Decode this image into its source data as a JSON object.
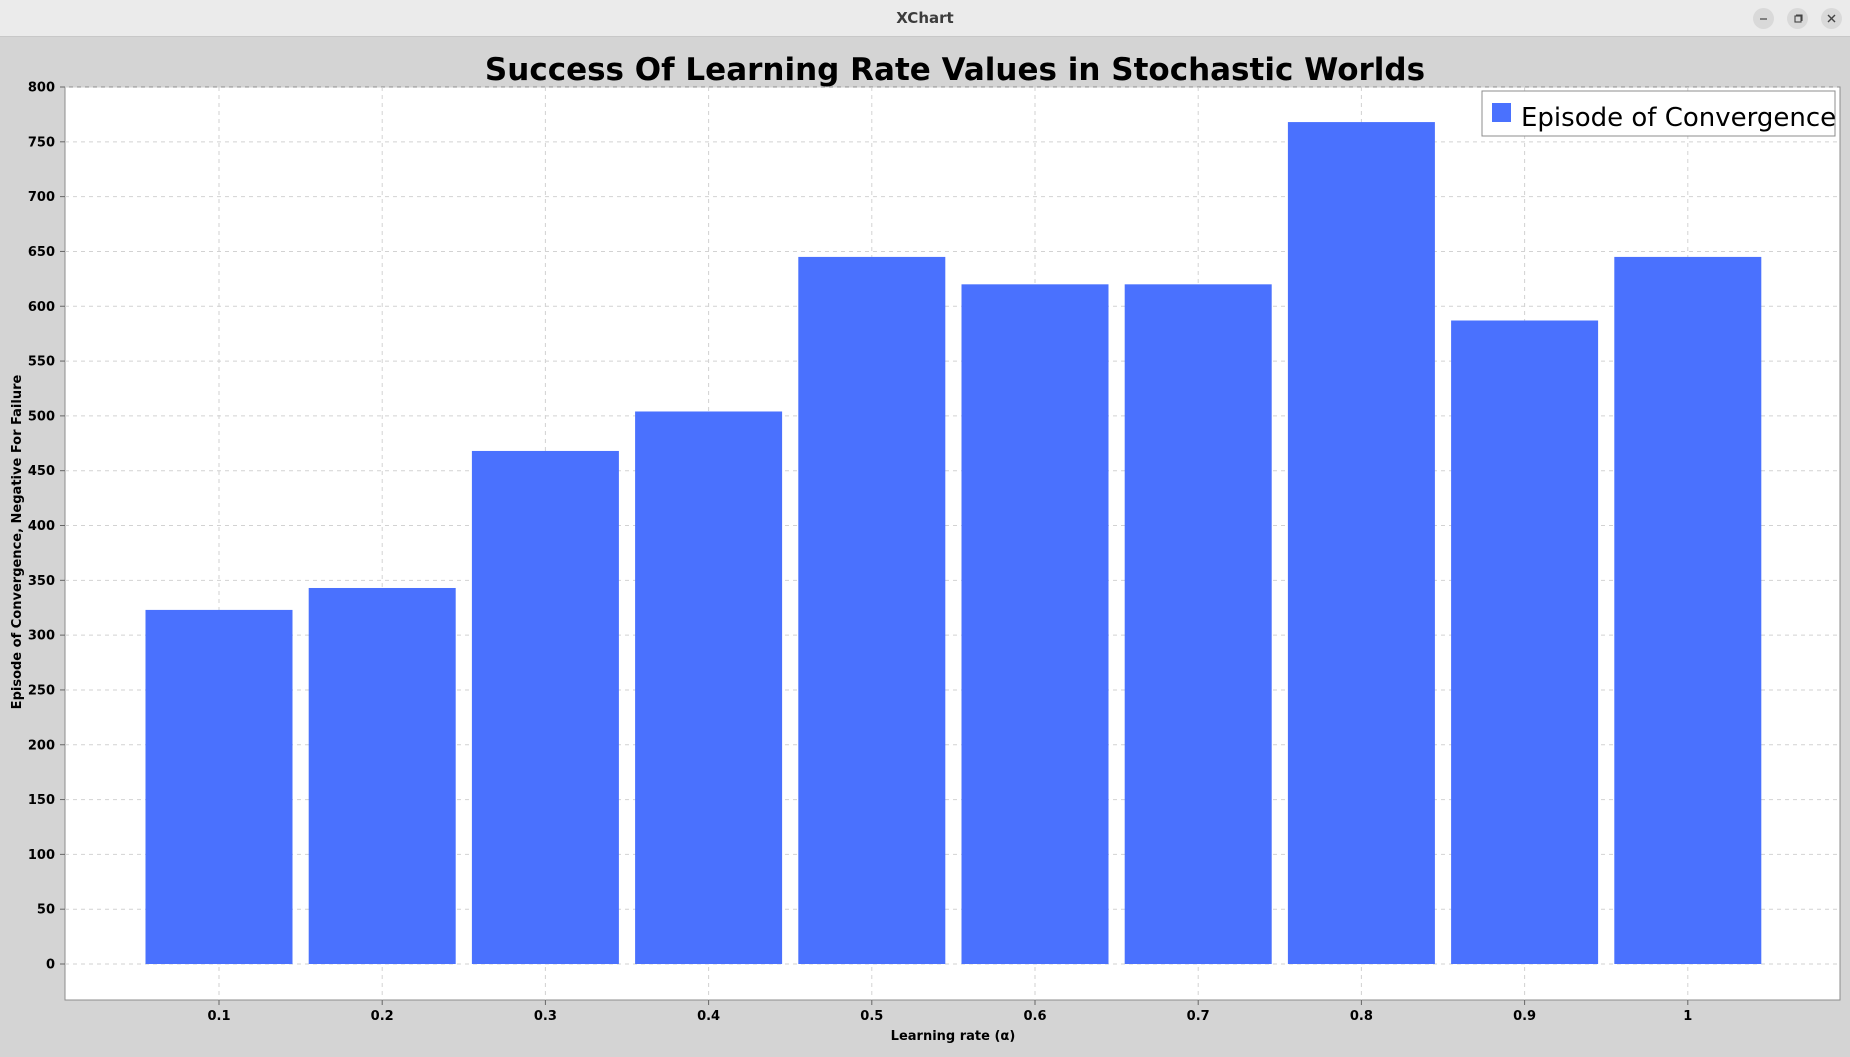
{
  "window": {
    "title": "XChart",
    "icons": [
      "minimize-icon",
      "restore-icon",
      "close-icon"
    ]
  },
  "chart_data": {
    "type": "bar",
    "title": "Success Of Learning Rate Values in Stochastic Worlds",
    "xlabel": "Learning rate (α)",
    "ylabel": "Episode of Convergence, Negative For Failure",
    "categories": [
      "0.1",
      "0.2",
      "0.3",
      "0.4",
      "0.5",
      "0.6",
      "0.7",
      "0.8",
      "0.9",
      "1"
    ],
    "series": [
      {
        "name": "Episode of Convergence",
        "color": "#4a71fe",
        "values": [
          323,
          343,
          468,
          504,
          645,
          620,
          620,
          768,
          587,
          645
        ]
      }
    ],
    "ylim": [
      -34,
      800
    ],
    "yticks": [
      0,
      50,
      100,
      150,
      200,
      250,
      300,
      350,
      400,
      450,
      500,
      550,
      600,
      650,
      700,
      750,
      800
    ],
    "grid": true,
    "legend_position": "top-right",
    "colors": {
      "background": "#d4d4d4",
      "plot_background": "#ffffff",
      "grid": "#d2d2d2",
      "bar": "#4a71fe"
    }
  }
}
